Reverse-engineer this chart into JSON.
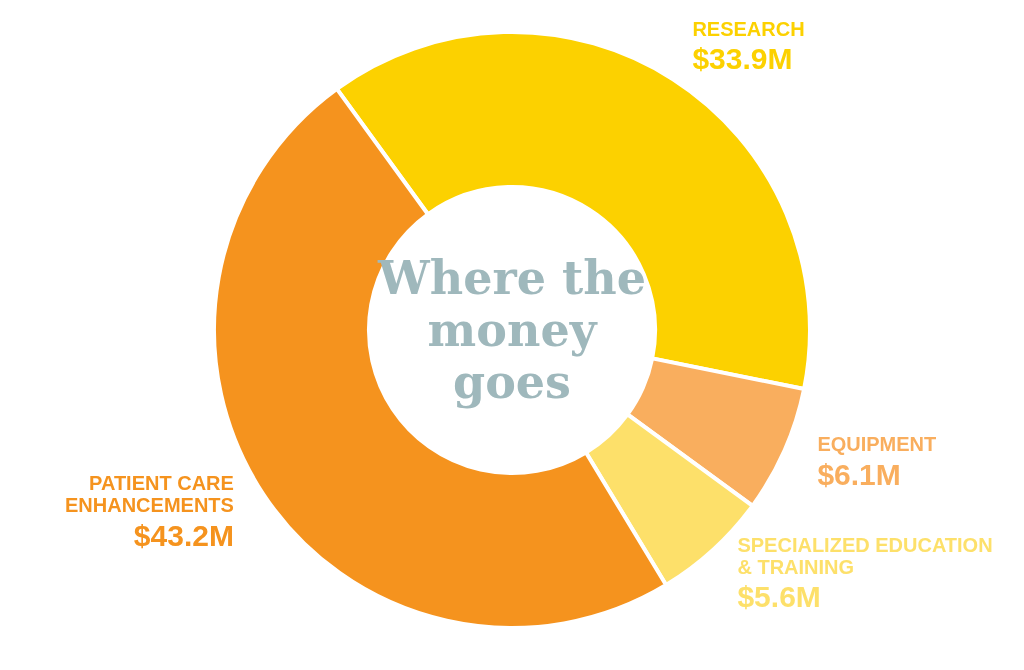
{
  "chart_data": {
    "type": "donut",
    "title": "Where the money goes",
    "categories": [
      "RESEARCH",
      "EQUIPMENT",
      "SPECIALIZED EDUCATION & TRAINING",
      "PATIENT CARE ENHANCEMENTS"
    ],
    "values": [
      33.9,
      6.1,
      5.6,
      43.2
    ],
    "value_labels": [
      "$33.9M",
      "$6.1M",
      "$5.6M",
      "$43.2M"
    ],
    "colors": [
      "#fcd100",
      "#f9ae5e",
      "#fde06a",
      "#f5931e"
    ],
    "legend": false
  }
}
